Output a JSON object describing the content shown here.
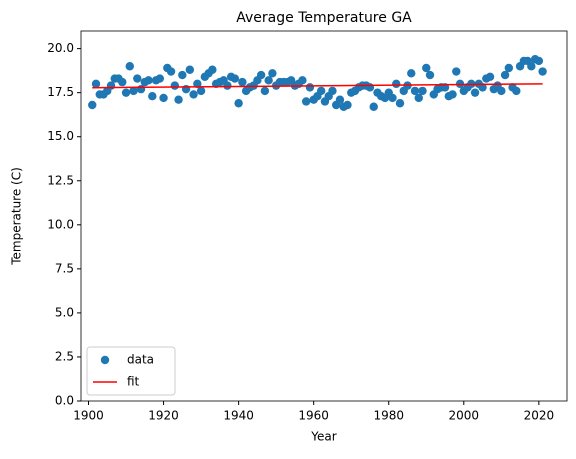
{
  "chart_data": {
    "type": "scatter",
    "title": "Average Temperature GA",
    "xlabel": "Year",
    "ylabel": "Temperature (C)",
    "xlim": [
      1898,
      2027.5
    ],
    "xticks": [
      1900,
      1920,
      1940,
      1960,
      1980,
      2000,
      2020
    ],
    "ylim": [
      0,
      21
    ],
    "yticks": [
      {
        "value": 0,
        "label": "0.0"
      },
      2.5,
      {
        "value": 5,
        "label": "5.0"
      },
      7.5,
      {
        "value": 10,
        "label": "10.0"
      },
      12.5,
      {
        "value": 15,
        "label": "15.0"
      },
      17.5,
      {
        "value": 20,
        "label": "20.0"
      }
    ],
    "legend": "lower left",
    "series": [
      {
        "name": "data",
        "type": "scatter",
        "color": "#1f77b4",
        "x": [
          1901,
          1902,
          1903,
          1904,
          1905,
          1906,
          1907,
          1908,
          1909,
          1910,
          1911,
          1912,
          1913,
          1914,
          1915,
          1916,
          1917,
          1918,
          1919,
          1920,
          1921,
          1922,
          1923,
          1924,
          1925,
          1926,
          1927,
          1928,
          1929,
          1930,
          1931,
          1932,
          1933,
          1934,
          1935,
          1936,
          1937,
          1938,
          1939,
          1940,
          1941,
          1942,
          1943,
          1944,
          1945,
          1946,
          1947,
          1948,
          1949,
          1950,
          1951,
          1952,
          1953,
          1954,
          1955,
          1956,
          1957,
          1958,
          1959,
          1960,
          1961,
          1962,
          1963,
          1964,
          1965,
          1966,
          1967,
          1968,
          1969,
          1970,
          1971,
          1972,
          1973,
          1974,
          1975,
          1976,
          1977,
          1978,
          1979,
          1980,
          1981,
          1982,
          1983,
          1984,
          1985,
          1986,
          1987,
          1988,
          1989,
          1990,
          1991,
          1992,
          1993,
          1994,
          1995,
          1996,
          1997,
          1998,
          1999,
          2000,
          2001,
          2002,
          2003,
          2004,
          2005,
          2006,
          2007,
          2008,
          2009,
          2010,
          2011,
          2012,
          2013,
          2014,
          2015,
          2016,
          2017,
          2018,
          2019,
          2020,
          2021
        ],
        "values": [
          16.8,
          18.0,
          17.4,
          17.4,
          17.6,
          17.9,
          18.3,
          18.3,
          18.1,
          17.5,
          19.0,
          17.6,
          18.3,
          17.7,
          18.1,
          18.2,
          17.3,
          18.2,
          18.3,
          17.2,
          18.9,
          18.7,
          17.9,
          17.1,
          18.5,
          17.7,
          18.8,
          17.4,
          18.0,
          17.6,
          18.4,
          18.6,
          18.8,
          18.0,
          18.1,
          18.2,
          17.9,
          18.4,
          18.3,
          16.9,
          18.1,
          17.6,
          17.8,
          17.9,
          18.2,
          18.5,
          17.6,
          18.2,
          18.6,
          17.9,
          18.1,
          18.1,
          18.1,
          18.2,
          17.9,
          18.0,
          18.2,
          17.0,
          17.8,
          17.1,
          17.3,
          17.6,
          17.0,
          17.3,
          17.6,
          16.8,
          17.1,
          16.7,
          16.8,
          17.5,
          17.6,
          17.8,
          17.9,
          17.9,
          17.8,
          16.7,
          17.5,
          17.3,
          17.2,
          17.5,
          17.2,
          18.0,
          16.9,
          17.6,
          17.9,
          18.6,
          17.6,
          17.2,
          17.6,
          18.9,
          18.5,
          17.4,
          17.7,
          17.8,
          17.8,
          17.3,
          17.4,
          18.7,
          18.0,
          17.6,
          17.8,
          18.0,
          17.5,
          18.0,
          17.8,
          18.3,
          18.4,
          17.7,
          17.9,
          17.6,
          18.5,
          18.9,
          17.8,
          17.6,
          19.0,
          19.3,
          19.3,
          19.0,
          19.4,
          19.3,
          18.7
        ]
      },
      {
        "name": "fit",
        "type": "line",
        "color": "#ff0000",
        "x": [
          1901,
          2021
        ],
        "values": [
          17.78,
          18.0
        ]
      }
    ]
  }
}
